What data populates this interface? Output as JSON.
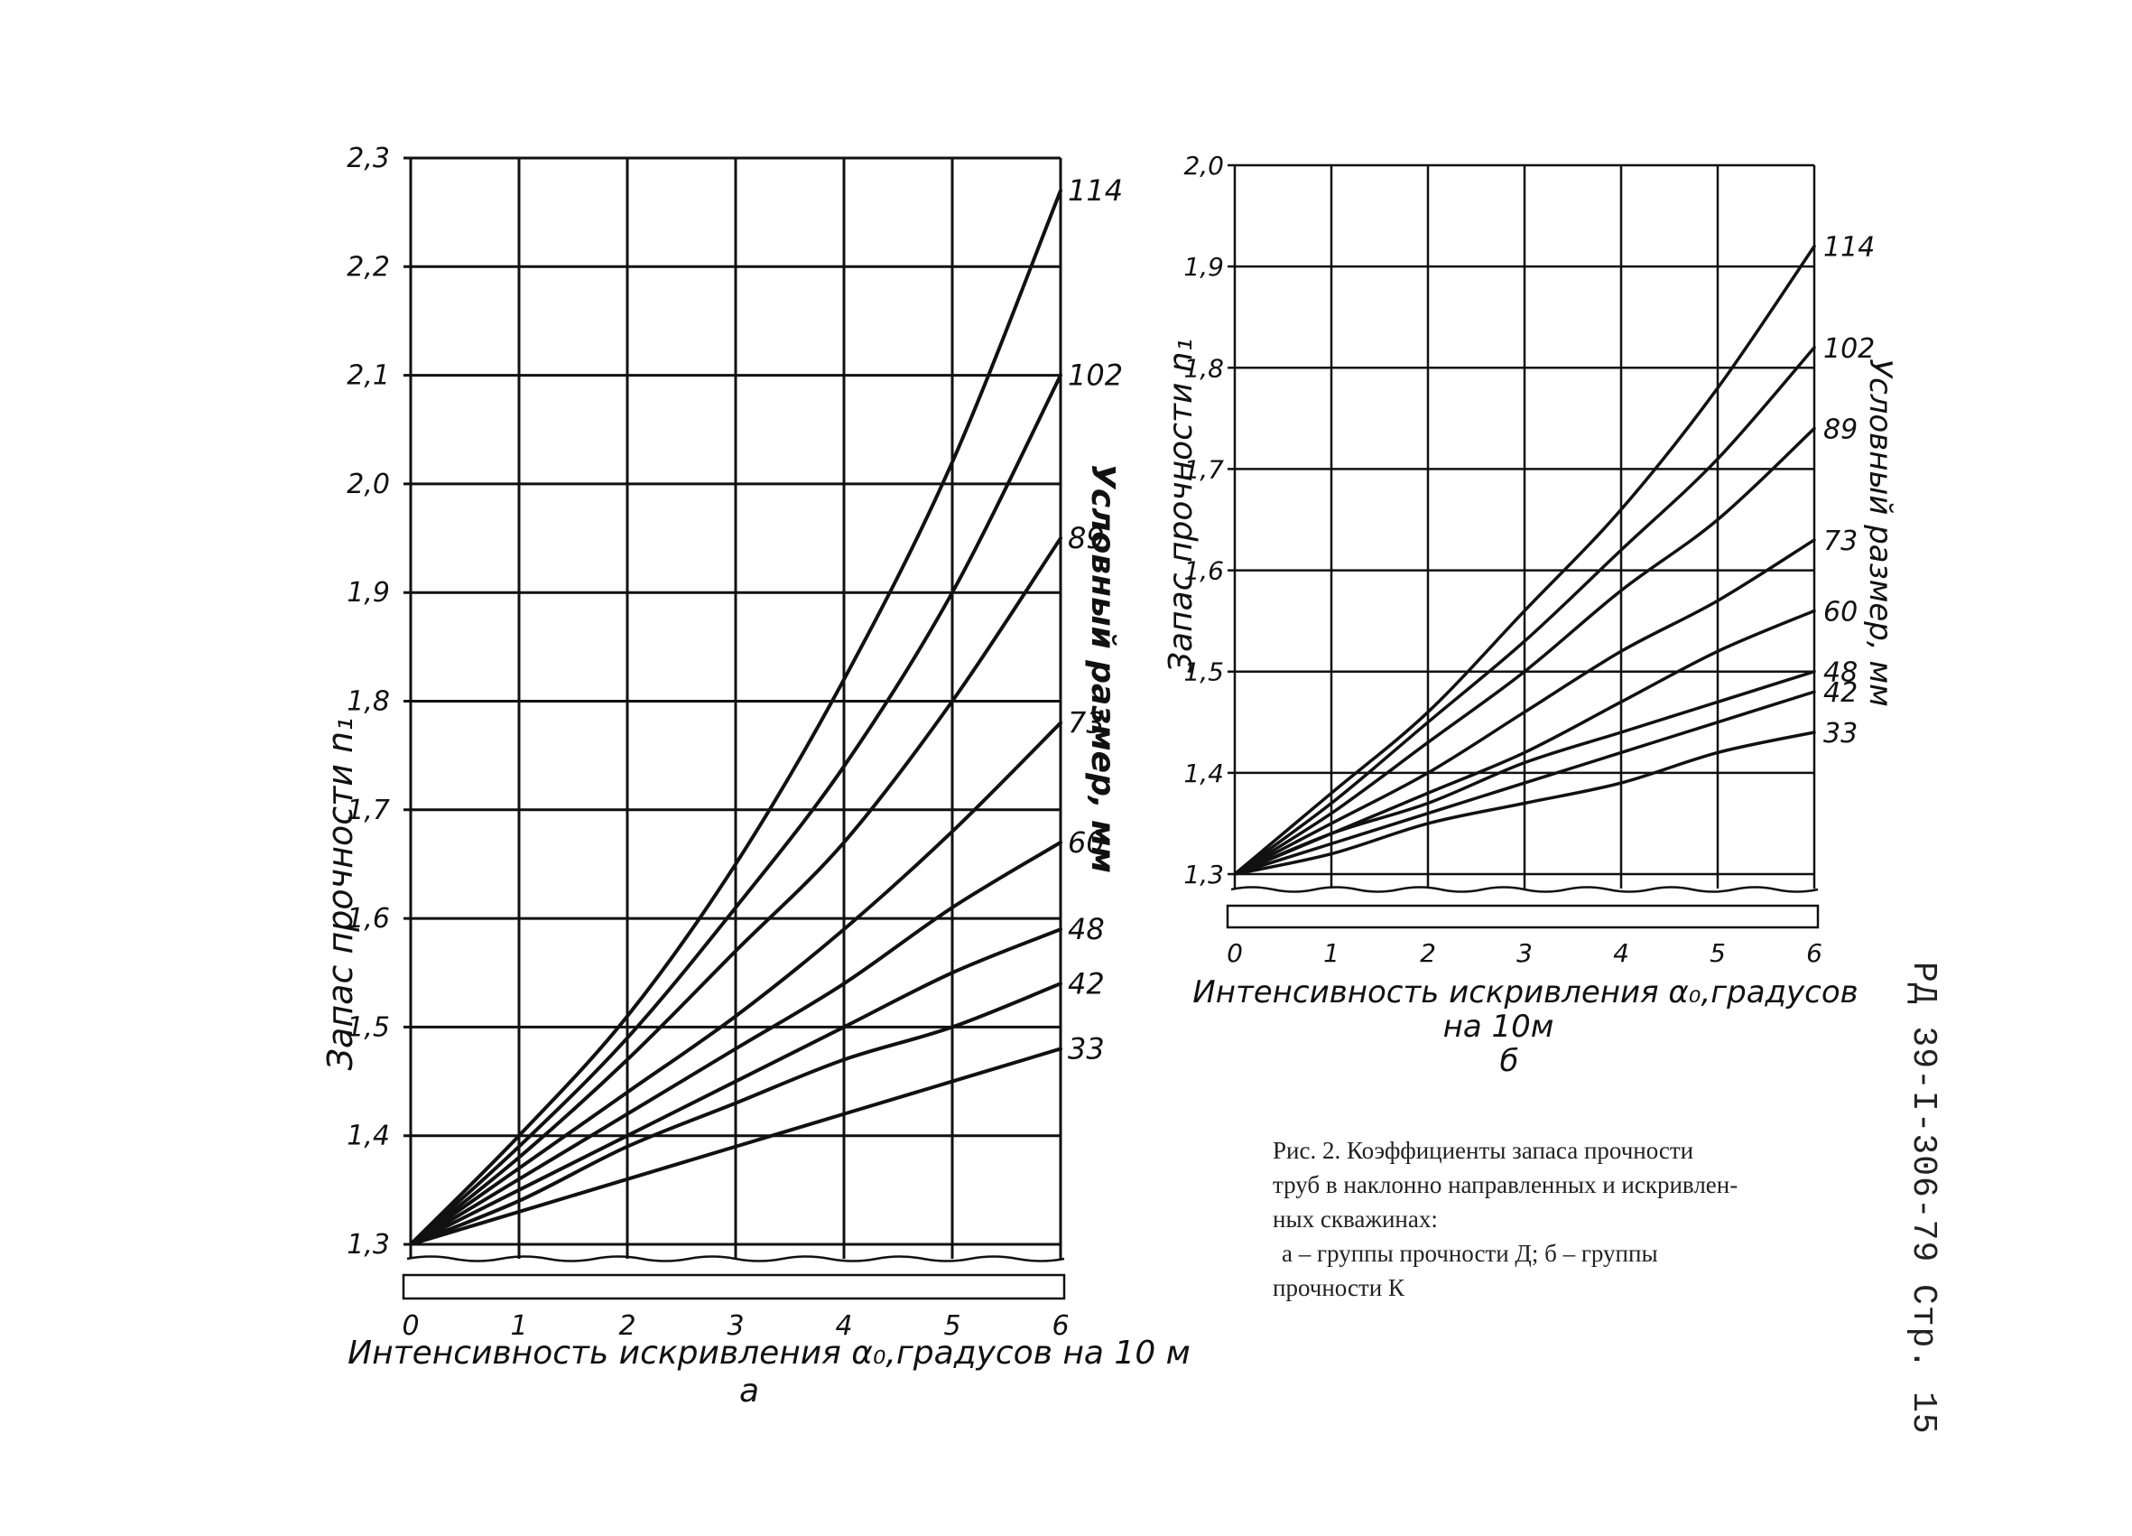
{
  "charts": [
    {
      "panel_label": "а",
      "ylabel": "Запас прочности n₁",
      "xlabel": "Интенсивность искривления α₀,градусов на 10 м",
      "series_axis_label": "Условный размер, мм",
      "x_ticks": [
        "0",
        "1",
        "2",
        "3",
        "4",
        "5",
        "6"
      ],
      "y_ticks": [
        "1,3",
        "1,4",
        "1,5",
        "1,6",
        "1,7",
        "1,8",
        "1,9",
        "2,0",
        "2,1",
        "2,2",
        "2,3"
      ]
    },
    {
      "panel_label": "б",
      "ylabel": "Запас прочности n₁",
      "xlabel_line1": "Интенсивность искривления α₀,градусов",
      "xlabel_line2": "на 10м",
      "series_axis_label": "Условный размер, мм",
      "x_ticks": [
        "0",
        "1",
        "2",
        "3",
        "4",
        "5",
        "6"
      ],
      "y_ticks": [
        "1,3",
        "1,4",
        "1,5",
        "1,6",
        "1,7",
        "1,8",
        "1,9",
        "2,0"
      ]
    }
  ],
  "caption": {
    "line1": "Рис. 2. Коэффициенты запаса прочности",
    "line2": "труб в наклонно направленных и искривлен-",
    "line3": "ных скважинах:",
    "line4": "а – группы прочности Д; б – группы",
    "line5": "прочности К"
  },
  "side_code": "РД 39-I-306-79  Стр. 15",
  "chart_data": [
    {
      "type": "line",
      "title": "",
      "xlabel": "Интенсивность искривления α₀,градусов на 10 м",
      "ylabel": "Запас прочности n₁",
      "xlim": [
        0,
        6
      ],
      "ylim": [
        1.3,
        2.3
      ],
      "grid": true,
      "x": [
        0,
        1,
        2,
        3,
        4,
        5,
        6
      ],
      "series": [
        {
          "name": "114",
          "values": [
            1.3,
            1.4,
            1.51,
            1.65,
            1.82,
            2.02,
            2.27
          ]
        },
        {
          "name": "102",
          "values": [
            1.3,
            1.39,
            1.49,
            1.61,
            1.74,
            1.9,
            2.1
          ]
        },
        {
          "name": "89",
          "values": [
            1.3,
            1.38,
            1.47,
            1.57,
            1.67,
            1.8,
            1.95
          ]
        },
        {
          "name": "73",
          "values": [
            1.3,
            1.37,
            1.44,
            1.51,
            1.59,
            1.68,
            1.78
          ]
        },
        {
          "name": "60",
          "values": [
            1.3,
            1.36,
            1.42,
            1.48,
            1.54,
            1.61,
            1.67
          ]
        },
        {
          "name": "48",
          "values": [
            1.3,
            1.35,
            1.4,
            1.45,
            1.5,
            1.55,
            1.59
          ]
        },
        {
          "name": "42",
          "values": [
            1.3,
            1.34,
            1.39,
            1.43,
            1.47,
            1.5,
            1.54
          ]
        },
        {
          "name": "33",
          "values": [
            1.3,
            1.33,
            1.36,
            1.39,
            1.42,
            1.45,
            1.48
          ]
        }
      ]
    },
    {
      "type": "line",
      "title": "",
      "xlabel": "Интенсивность искривления α₀,градусов на 10м",
      "ylabel": "Запас прочности n₁",
      "xlim": [
        0,
        6
      ],
      "ylim": [
        1.3,
        2.0
      ],
      "grid": true,
      "x": [
        0,
        1,
        2,
        3,
        4,
        5,
        6
      ],
      "series": [
        {
          "name": "114",
          "values": [
            1.3,
            1.38,
            1.46,
            1.56,
            1.66,
            1.78,
            1.92
          ]
        },
        {
          "name": "102",
          "values": [
            1.3,
            1.37,
            1.45,
            1.53,
            1.62,
            1.71,
            1.82
          ]
        },
        {
          "name": "89",
          "values": [
            1.3,
            1.36,
            1.43,
            1.5,
            1.58,
            1.65,
            1.74
          ]
        },
        {
          "name": "73",
          "values": [
            1.3,
            1.35,
            1.4,
            1.46,
            1.52,
            1.57,
            1.63
          ]
        },
        {
          "name": "60",
          "values": [
            1.3,
            1.34,
            1.38,
            1.42,
            1.47,
            1.52,
            1.56
          ]
        },
        {
          "name": "48",
          "values": [
            1.3,
            1.34,
            1.37,
            1.41,
            1.44,
            1.47,
            1.5
          ]
        },
        {
          "name": "42",
          "values": [
            1.3,
            1.33,
            1.36,
            1.39,
            1.42,
            1.45,
            1.48
          ]
        },
        {
          "name": "33",
          "values": [
            1.3,
            1.32,
            1.35,
            1.37,
            1.39,
            1.42,
            1.44
          ]
        }
      ]
    }
  ]
}
